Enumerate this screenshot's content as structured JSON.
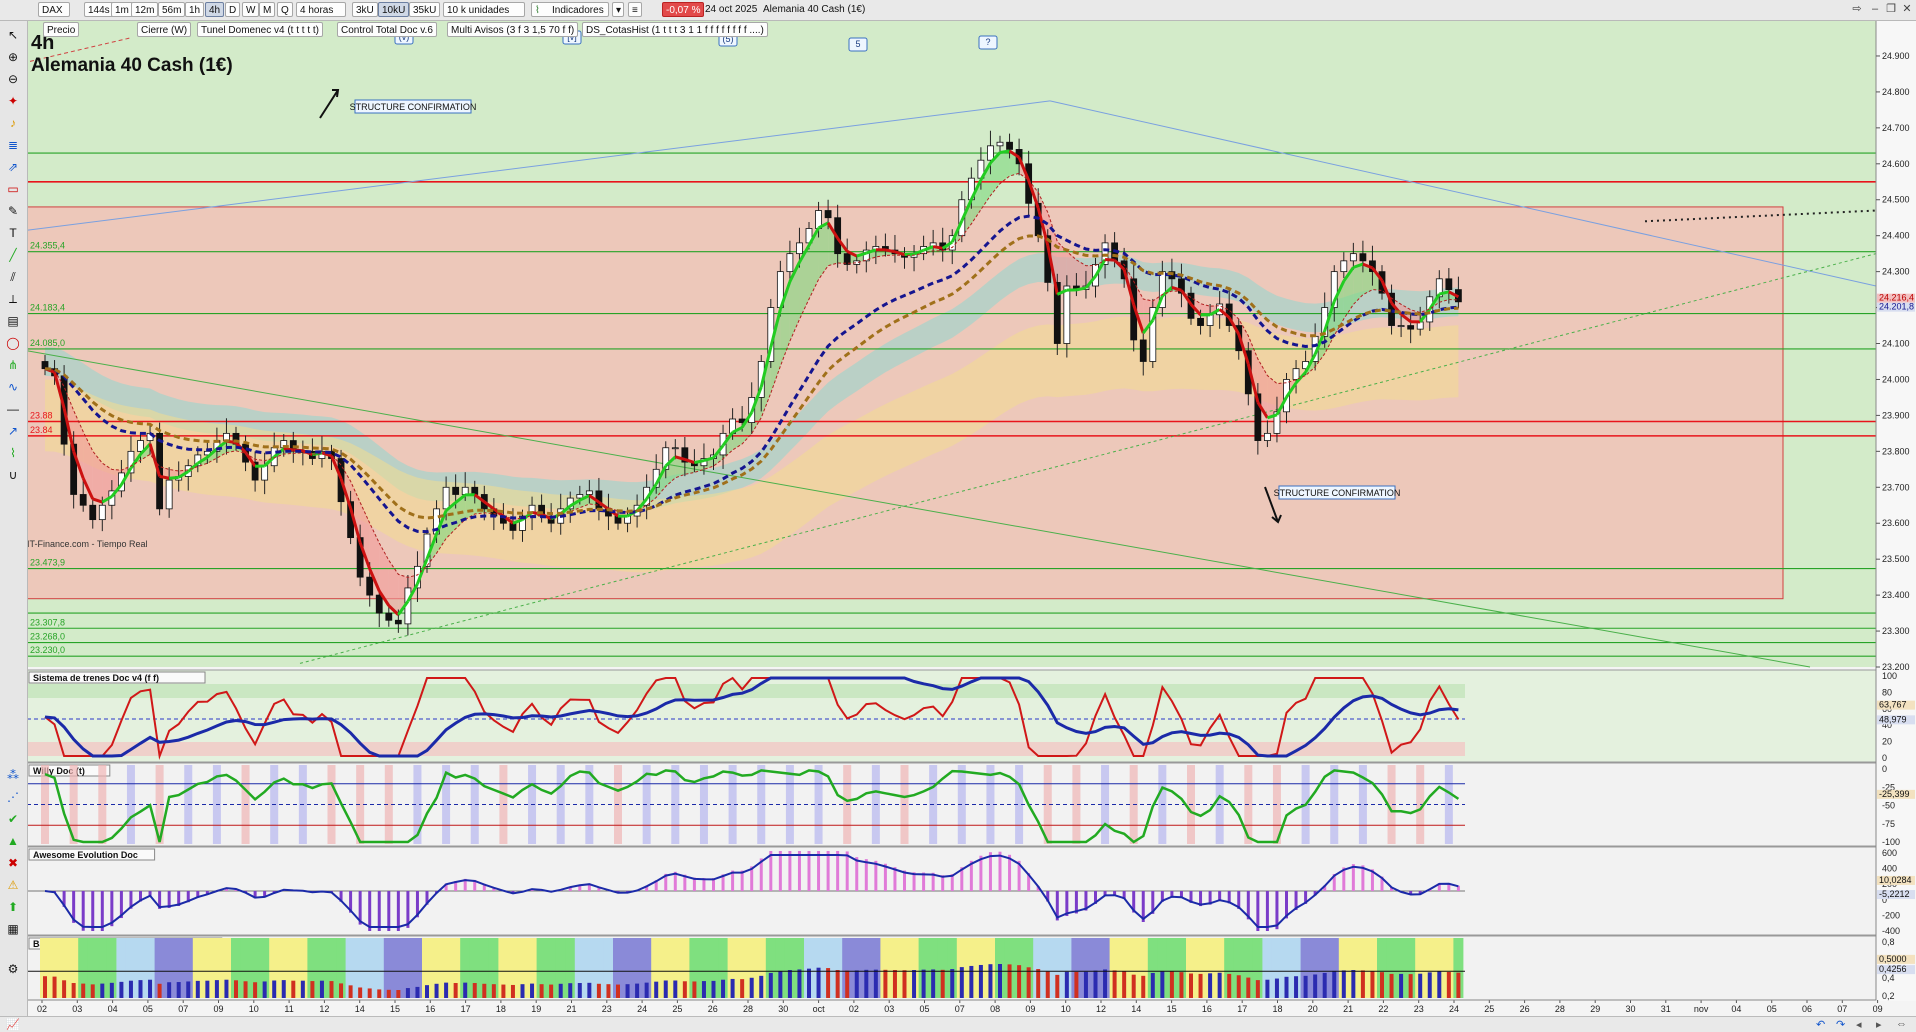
{
  "toolbar": {
    "symbol": "DAX",
    "timeframes": [
      "144s",
      "1m",
      "12m",
      "56m",
      "1h",
      "4h",
      "D",
      "W",
      "M",
      "Q"
    ],
    "active_timeframe": "4h",
    "interval_label": "4 horas",
    "volume_buttons": [
      "3kU",
      "10kU",
      "35kU"
    ],
    "active_volume": "10kU",
    "units_label": "10 k unidades",
    "indicators_label": "Indicadores",
    "change_pct": "-0,07 %",
    "date": "24 oct 2025",
    "instrument": "Alemania 40 Cash (1€)",
    "second_row": [
      "Precio",
      "Cierre (W)",
      "Tunel Domenec v4 (t t t t t)",
      "Control Total Doc v.6",
      "Multi Avisos (3 f 3 1,5 70 f f)",
      "DS_CotasHist (1 t t t 3 1 1 f f f f f f f f ....)"
    ]
  },
  "chart_header": {
    "timeframe": "4h",
    "title": "Alemania 40 Cash (1€)",
    "source": "IT-Finance.com - Tiempo Real"
  },
  "colors": {
    "price_bg_green": "#d3ebc9",
    "price_box": "#f0c4b8",
    "red_line": "#e8141b",
    "green_line": "#27a327",
    "fast_green": "#22cc22",
    "fast_red": "#cc1111",
    "slow_blue": "#15158f",
    "slow_brown": "#a0701a",
    "cyan_cloud": "#8fd7d0",
    "yellow_cloud": "#f3dc8f"
  },
  "chart_data": {
    "type": "candlestick",
    "title": "Alemania 40 Cash (1€)",
    "timeframe": "4h",
    "xlabel": "",
    "ylabel": "",
    "ylim": [
      23200,
      24950
    ],
    "y_ticks": [
      23200,
      23300,
      23400,
      23500,
      23600,
      23700,
      23800,
      23900,
      24000,
      24100,
      24200,
      24300,
      24400,
      24500,
      24600,
      24700,
      24800,
      24900
    ],
    "y_tick_labels": [
      "23.200",
      "23.300",
      "23.400",
      "23.500",
      "23.600",
      "23.700",
      "23.800",
      "23.900",
      "24.000",
      "24.100",
      "24.200",
      "24.300",
      "24.400",
      "24.500",
      "24.600",
      "24.700",
      "24.800",
      "24.900"
    ],
    "x_tick_labels": [
      "02",
      "03",
      "04",
      "05",
      "07",
      "09",
      "10",
      "11",
      "12",
      "14",
      "15",
      "16",
      "17",
      "18",
      "19",
      "21",
      "23",
      "24",
      "25",
      "26",
      "28",
      "30",
      "oct",
      "02",
      "03",
      "05",
      "07",
      "08",
      "09",
      "10",
      "12",
      "14",
      "15",
      "16",
      "17",
      "18",
      "20",
      "21",
      "22",
      "23",
      "24",
      "25",
      "26",
      "28",
      "29",
      "30",
      "31",
      "nov",
      "04",
      "05",
      "06",
      "07",
      "09"
    ],
    "last_price": 24216.4,
    "last_price_label": "24.216,4",
    "second_price_label": "24.201,8",
    "horizontal_levels": [
      {
        "value": 24550,
        "color": "red"
      },
      {
        "value": 24630,
        "color": "green"
      },
      {
        "value": 24355.4,
        "color": "green",
        "label": "24.355,4"
      },
      {
        "value": 24183.4,
        "color": "green",
        "label": "24.183,4"
      },
      {
        "value": 24085.0,
        "color": "green",
        "label": "24.085,0"
      },
      {
        "value": 23883,
        "color": "red",
        "label": "23.88"
      },
      {
        "value": 23843,
        "color": "red",
        "label": "23.84"
      },
      {
        "value": 23473.9,
        "color": "green",
        "label": "23.473,9"
      },
      {
        "value": 23350,
        "color": "green"
      },
      {
        "value": 23307.8,
        "color": "green",
        "label": "23.307,8"
      },
      {
        "value": 23268,
        "color": "green",
        "label": "23.268,0"
      },
      {
        "value": 23230.0,
        "color": "green",
        "label": "23.230,0"
      }
    ],
    "price_box": {
      "top": 24480,
      "bottom": 23390
    },
    "wave_labels": [
      "(v)",
      "[v]",
      "(5)",
      "5",
      "?"
    ],
    "annotations": [
      "STRUCTURE CONFIRMATION",
      "STRUCTURE CONFIRMATION"
    ],
    "close_path": [
      24030,
      24010,
      23820,
      23680,
      23650,
      23610,
      23650,
      23690,
      23740,
      23800,
      23830,
      23850,
      23640,
      23720,
      23730,
      23760,
      23790,
      23800,
      23830,
      23850,
      23820,
      23770,
      23720,
      23760,
      23810,
      23830,
      23800,
      23800,
      23780,
      23800,
      23780,
      23660,
      23560,
      23450,
      23400,
      23350,
      23330,
      23320,
      23420,
      23480,
      23570,
      23640,
      23700,
      23680,
      23700,
      23680,
      23640,
      23620,
      23600,
      23580,
      23620,
      23650,
      23620,
      23600,
      23640,
      23670,
      23680,
      23690,
      23640,
      23620,
      23600,
      23620,
      23650,
      23700,
      23750,
      23810,
      23810,
      23770,
      23760,
      23780,
      23790,
      23850,
      23890,
      23880,
      23950,
      24050,
      24200,
      24300,
      24350,
      24380,
      24420,
      24470,
      24450,
      24350,
      24320,
      24330,
      24360,
      24370,
      24360,
      24350,
      24340,
      24350,
      24370,
      24380,
      24360,
      24400,
      24500,
      24560,
      24610,
      24650,
      24660,
      24640,
      24600,
      24490,
      24400,
      24270,
      24100,
      24260,
      24250,
      24260,
      24320,
      24380,
      24330,
      24280,
      24110,
      24050,
      24200,
      24300,
      24280,
      24240,
      24170,
      24150,
      24180,
      24210,
      24150,
      24080,
      23960,
      23830,
      23850,
      23910,
      24000,
      24030,
      24050,
      24120,
      24200,
      24300,
      24330,
      24350,
      24330,
      24300,
      24240,
      24150,
      24150,
      24140,
      24160,
      24230,
      24280,
      24250,
      24216
    ]
  },
  "panels": [
    {
      "name": "Sistema de trenes Doc v4 (f f)",
      "y_labels": [
        "100",
        "80",
        "60",
        "40",
        "20",
        "0"
      ],
      "values": [
        "63,767",
        "48,979"
      ]
    },
    {
      "name": "Willy Doc (t)",
      "y_labels": [
        "0",
        "-25",
        "-50",
        "-75",
        "-100"
      ],
      "values": [
        "-25,399"
      ]
    },
    {
      "name": "Awesome Evolution Doc",
      "y_labels": [
        "600",
        "400",
        "200",
        "0",
        "-200",
        "-400"
      ],
      "values": [
        "10,0284",
        "-5,2212"
      ]
    },
    {
      "name": "Barra Fuerza Fondo Mercado v4 (f)",
      "y_labels": [
        "0,8",
        "0,6",
        "0,4",
        "0,2"
      ],
      "values": [
        "0,5000",
        "0,4256"
      ]
    }
  ]
}
